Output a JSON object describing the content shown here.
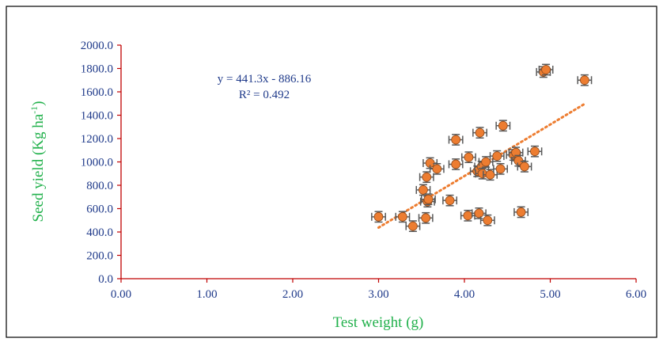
{
  "chart_data": {
    "type": "scatter",
    "xlabel": "Test weight (g)",
    "ylabel_main": "Seed yield (Kg ha",
    "ylabel_sup": "-1",
    "ylabel_close": ")",
    "equation": "y = 441.3x - 886.16",
    "r_squared": "R² = 0.492",
    "xlim": [
      0,
      6
    ],
    "ylim": [
      0,
      2000
    ],
    "x_ticks": [
      "0.00",
      "1.00",
      "2.00",
      "3.00",
      "4.00",
      "5.00",
      "6.00"
    ],
    "y_ticks": [
      "0.0",
      "200.0",
      "400.0",
      "600.0",
      "800.0",
      "1000.0",
      "1200.0",
      "1400.0",
      "1600.0",
      "1800.0",
      "2000.0"
    ],
    "trendline": {
      "slope": 441.3,
      "intercept": -886.16,
      "x_range": [
        3.0,
        5.4
      ]
    },
    "error_bar_x": 0.08,
    "error_bar_y": 45,
    "points": [
      {
        "x": 3.0,
        "y": 530
      },
      {
        "x": 3.28,
        "y": 530
      },
      {
        "x": 3.4,
        "y": 450
      },
      {
        "x": 3.52,
        "y": 760
      },
      {
        "x": 3.55,
        "y": 520
      },
      {
        "x": 3.56,
        "y": 870
      },
      {
        "x": 3.57,
        "y": 660
      },
      {
        "x": 3.58,
        "y": 680
      },
      {
        "x": 3.6,
        "y": 990
      },
      {
        "x": 3.68,
        "y": 940
      },
      {
        "x": 3.83,
        "y": 670
      },
      {
        "x": 3.9,
        "y": 980
      },
      {
        "x": 3.9,
        "y": 1190
      },
      {
        "x": 4.04,
        "y": 540
      },
      {
        "x": 4.05,
        "y": 1040
      },
      {
        "x": 4.15,
        "y": 920
      },
      {
        "x": 4.17,
        "y": 560
      },
      {
        "x": 4.18,
        "y": 1250
      },
      {
        "x": 4.2,
        "y": 960
      },
      {
        "x": 4.21,
        "y": 900
      },
      {
        "x": 4.25,
        "y": 1000
      },
      {
        "x": 4.27,
        "y": 500
      },
      {
        "x": 4.3,
        "y": 890
      },
      {
        "x": 4.38,
        "y": 1050
      },
      {
        "x": 4.42,
        "y": 940
      },
      {
        "x": 4.45,
        "y": 1310
      },
      {
        "x": 4.57,
        "y": 1060
      },
      {
        "x": 4.6,
        "y": 1080
      },
      {
        "x": 4.63,
        "y": 1010
      },
      {
        "x": 4.66,
        "y": 570
      },
      {
        "x": 4.7,
        "y": 960
      },
      {
        "x": 4.82,
        "y": 1090
      },
      {
        "x": 4.92,
        "y": 1770
      },
      {
        "x": 4.95,
        "y": 1790
      },
      {
        "x": 5.4,
        "y": 1700
      }
    ],
    "colors": {
      "marker": "#ED7D31",
      "marker_outline": "#8E4A1C",
      "error_bar": "#595959",
      "trendline": "#ED7D31",
      "axis": "#C00000",
      "tick_label": "#1F3A8A",
      "axis_title": "#22B14C",
      "annotation": "#1F3A8A"
    },
    "grid": false,
    "legend": "none"
  }
}
